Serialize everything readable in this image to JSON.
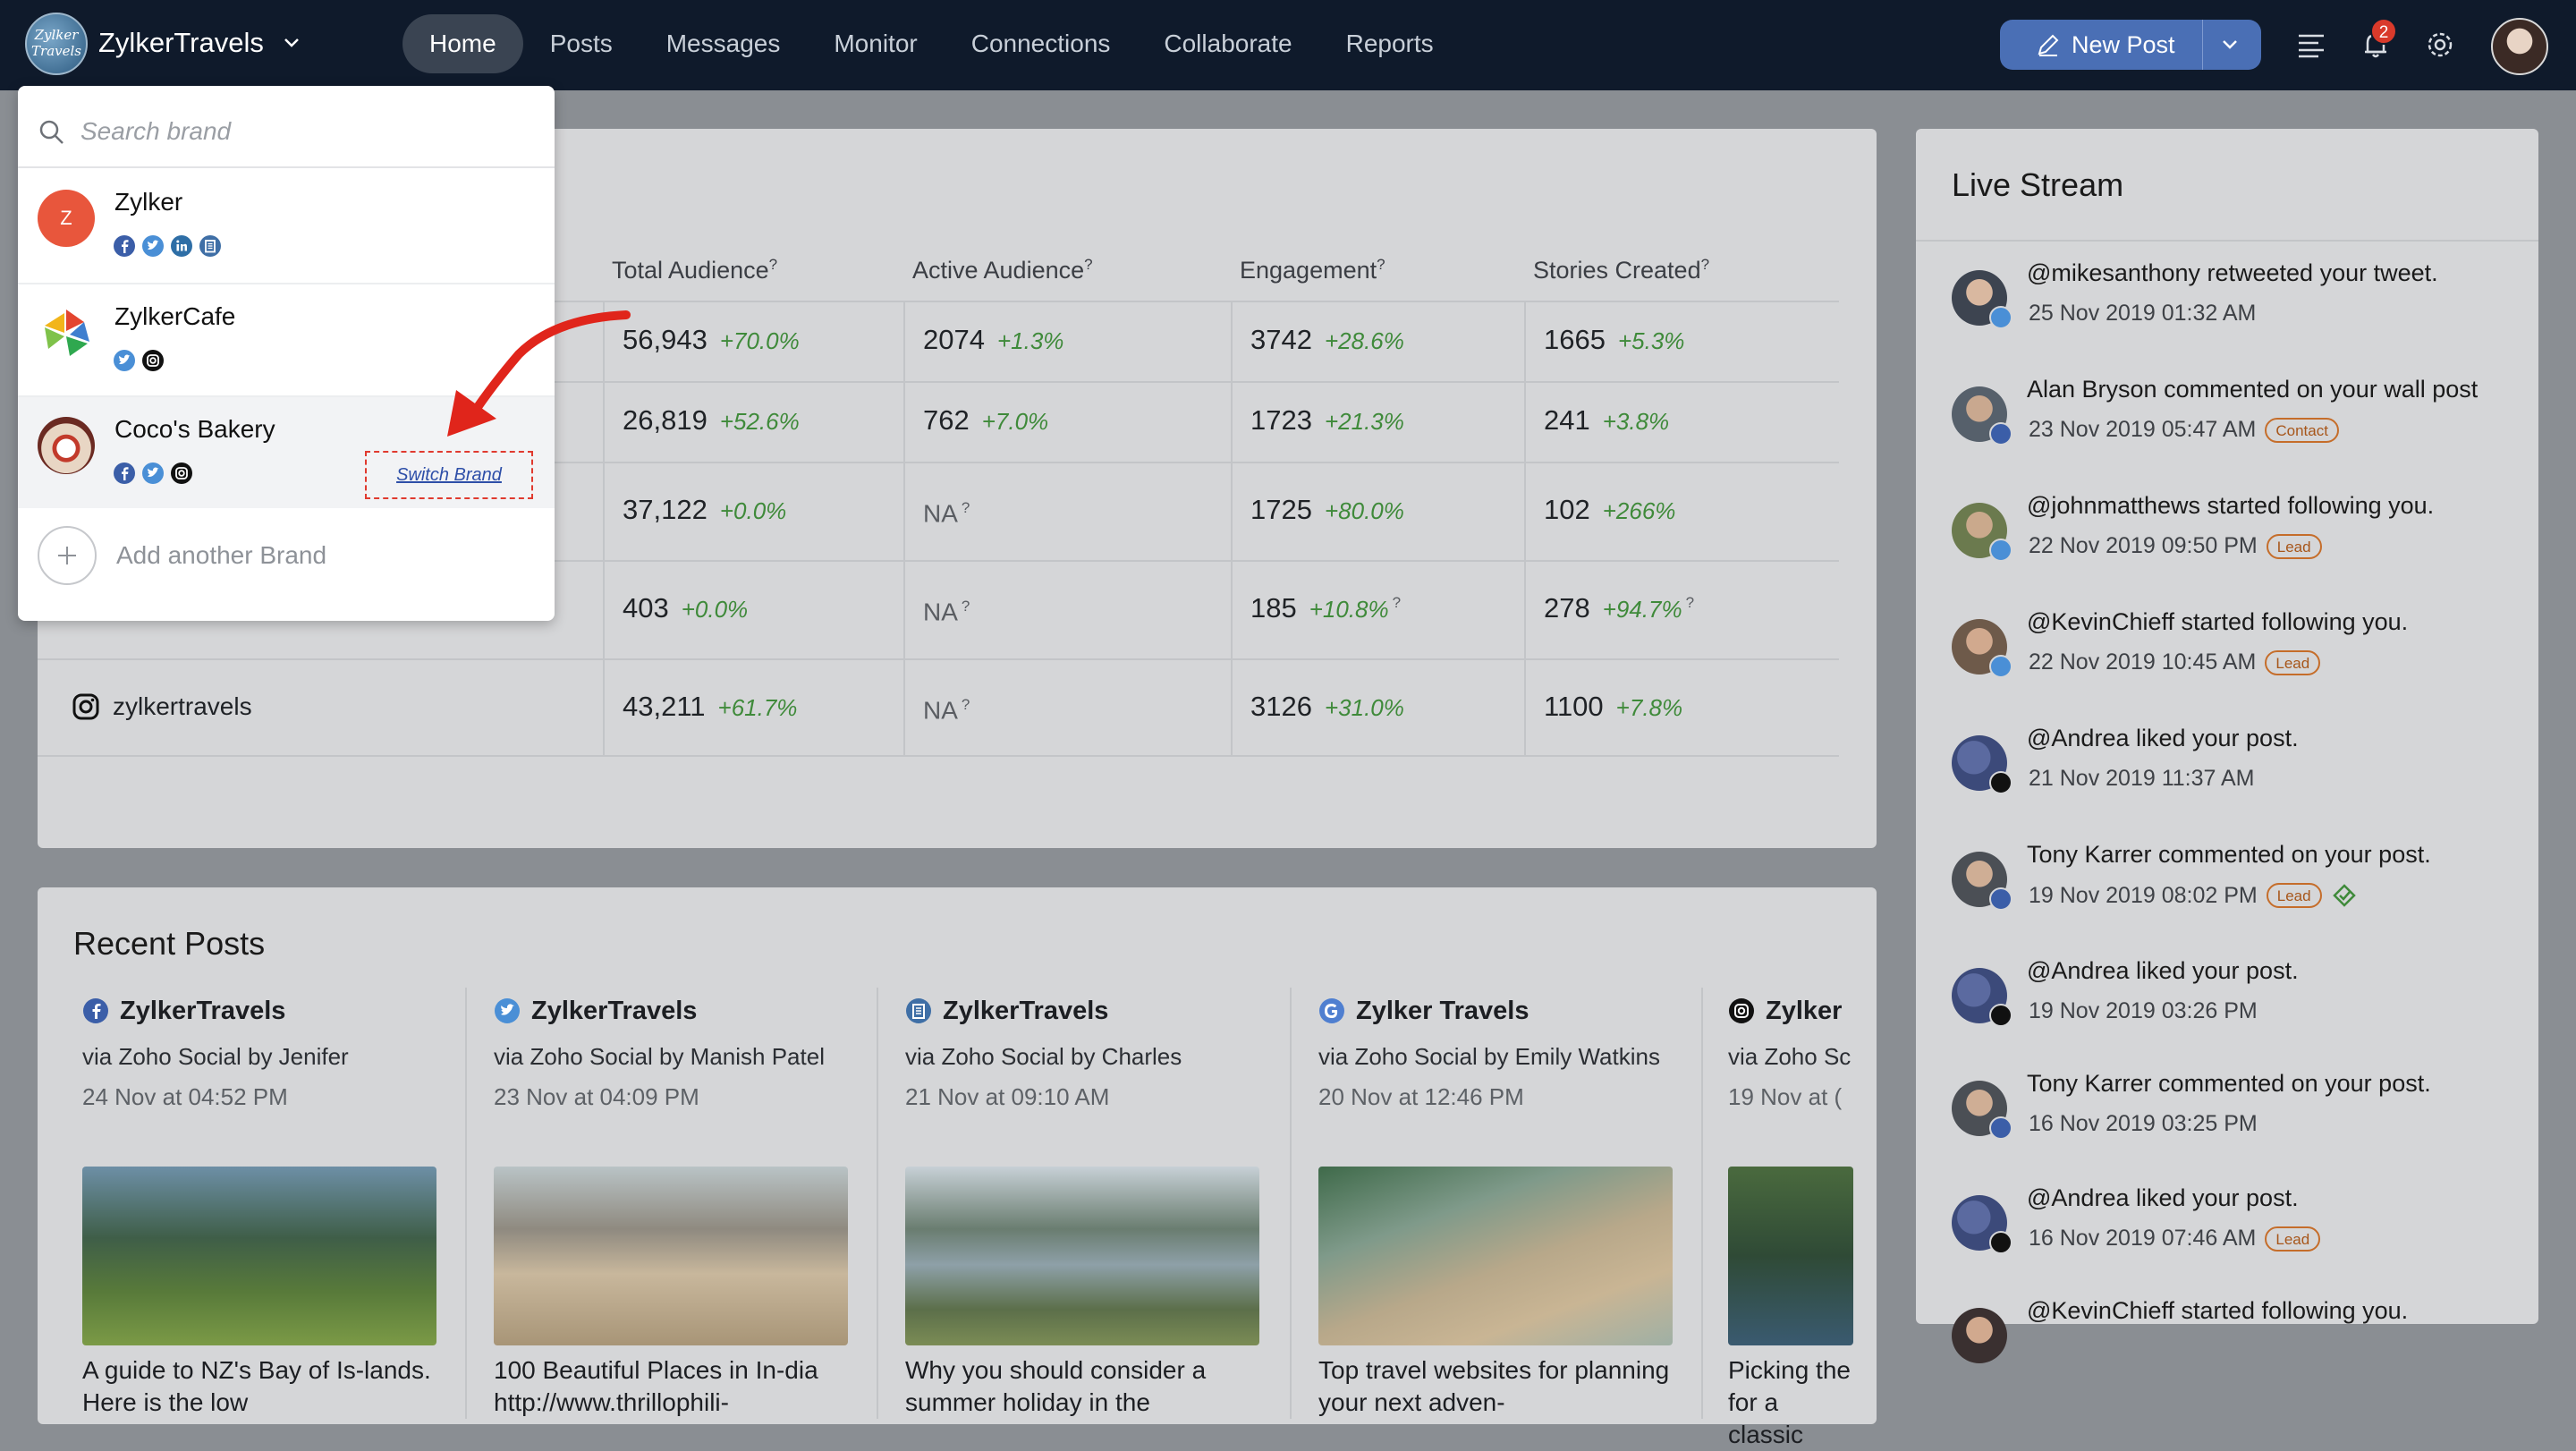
{
  "topbar": {
    "logo_text": "Zylker Travels",
    "brand_name": "ZylkerTravels",
    "nav": [
      "Home",
      "Posts",
      "Messages",
      "Monitor",
      "Connections",
      "Collaborate",
      "Reports"
    ],
    "active_nav": "Home",
    "new_post_label": "New Post",
    "notification_count": "2",
    "accent_color": "#4a6fb5"
  },
  "stats": {
    "headers": [
      "Total Audience",
      "Active Audience",
      "Engagement",
      "Stories Created"
    ],
    "help_mark": "?",
    "rows": [
      {
        "account": "",
        "total": "56,943",
        "total_pct": "+70.0%",
        "active": "2074",
        "active_pct": "+1.3%",
        "eng": "3742",
        "eng_pct": "+28.6%",
        "stories": "1665",
        "stories_pct": "+5.3%"
      },
      {
        "account": "",
        "total": "26,819",
        "total_pct": "+52.6%",
        "active": "762",
        "active_pct": "+7.0%",
        "eng": "1723",
        "eng_pct": "+21.3%",
        "stories": "241",
        "stories_pct": "+3.8%"
      },
      {
        "account": "",
        "total": "37,122",
        "total_pct": "+0.0%",
        "active": "NA",
        "active_pct": "",
        "eng": "1725",
        "eng_pct": "+80.0%",
        "stories": "102",
        "stories_pct": "+266%"
      },
      {
        "account": "",
        "total": "403",
        "total_pct": "+0.0%",
        "active": "NA",
        "active_pct": "",
        "eng": "185",
        "eng_pct": "+10.8%",
        "stories": "278",
        "stories_pct": "+94.7%"
      },
      {
        "account": "zylkertravels",
        "total": "43,211",
        "total_pct": "+61.7%",
        "active": "NA",
        "active_pct": "",
        "eng": "3126",
        "eng_pct": "+31.0%",
        "stories": "1100",
        "stories_pct": "+7.8%"
      }
    ]
  },
  "recent_posts": {
    "title": "Recent Posts",
    "posts": [
      {
        "network": "facebook",
        "account": "ZylkerTravels",
        "via": "via Zoho Social by Jenifer",
        "date": "24 Nov at 04:52 PM",
        "caption": "A guide to NZ's Bay of Is-lands. Here is the low"
      },
      {
        "network": "twitter",
        "account": "ZylkerTravels",
        "via": "via Zoho Social by Manish Patel",
        "date": "23 Nov at 04:09 PM",
        "caption": "100 Beautiful Places in In-dia http://www.thrillophili-"
      },
      {
        "network": "linkedin-page",
        "account": "ZylkerTravels",
        "via": "via Zoho Social by Charles",
        "date": "21 Nov at 09:10 AM",
        "caption": "Why you should consider a summer holiday in the"
      },
      {
        "network": "google",
        "account": "Zylker Travels",
        "via": "via Zoho Social by Emily Watkins",
        "date": "20 Nov at 12:46 PM",
        "caption": "Top travel websites for planning your next adven-"
      },
      {
        "network": "instagram",
        "account": "Zylker",
        "via": "via Zoho Sc",
        "date": "19 Nov at (",
        "caption": "Picking the for a classic"
      }
    ]
  },
  "live_stream": {
    "title": "Live Stream",
    "items": [
      {
        "text": "@mikesanthony retweeted your tweet.",
        "time": "25 Nov 2019 01:32 AM",
        "tag": "",
        "network": "twitter"
      },
      {
        "text": "Alan Bryson commented on your wall post",
        "time": "23 Nov 2019 05:47 AM",
        "tag": "Contact",
        "network": "facebook"
      },
      {
        "text": "@johnmatthews started following you.",
        "time": "22 Nov 2019 09:50 PM",
        "tag": "Lead",
        "network": "twitter"
      },
      {
        "text": "@KevinChieff started following you.",
        "time": "22 Nov 2019 10:45 AM",
        "tag": "Lead",
        "network": "twitter"
      },
      {
        "text": "@Andrea liked your post.",
        "time": "21 Nov 2019 11:37 AM",
        "tag": "",
        "network": "instagram"
      },
      {
        "text": "Tony Karrer commented on your post.",
        "time": "19 Nov 2019 08:02 PM",
        "tag": "Lead",
        "network": "facebook"
      },
      {
        "text": "@Andrea liked your post.",
        "time": "19 Nov 2019 03:26 PM",
        "tag": "",
        "network": "instagram"
      },
      {
        "text": "Tony Karrer commented on your post.",
        "time": "16 Nov 2019 03:25 PM",
        "tag": "",
        "network": "facebook"
      },
      {
        "text": "@Andrea liked your post.",
        "time": "16 Nov 2019 07:46 AM",
        "tag": "Lead",
        "network": "instagram"
      },
      {
        "text": "@KevinChieff started following you.",
        "time": "",
        "tag": "",
        "network": "twitter"
      }
    ]
  },
  "brand_dropdown": {
    "search_placeholder": "Search brand",
    "brands": [
      {
        "name": "Zylker",
        "logo_letter": "Z",
        "networks": [
          "facebook",
          "twitter",
          "linkedin",
          "linkedin-page"
        ]
      },
      {
        "name": "ZylkerCafe",
        "logo_letter": "",
        "networks": [
          "twitter",
          "instagram"
        ]
      },
      {
        "name": "Coco's Bakery",
        "logo_letter": "",
        "networks": [
          "facebook",
          "twitter",
          "instagram"
        ]
      }
    ],
    "switch_label": "Switch Brand",
    "add_label": "Add another Brand"
  }
}
